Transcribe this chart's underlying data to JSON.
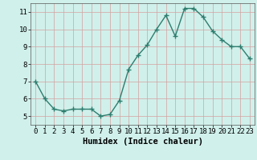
{
  "x": [
    0,
    1,
    2,
    3,
    4,
    5,
    6,
    7,
    8,
    9,
    10,
    11,
    12,
    13,
    14,
    15,
    16,
    17,
    18,
    19,
    20,
    21,
    22,
    23
  ],
  "y": [
    7.0,
    6.0,
    5.4,
    5.3,
    5.4,
    5.4,
    5.4,
    5.0,
    5.1,
    5.9,
    7.7,
    8.5,
    9.1,
    10.0,
    10.8,
    9.6,
    11.2,
    11.2,
    10.7,
    9.9,
    9.4,
    9.0,
    9.0,
    8.3
  ],
  "line_color": "#2e7d6e",
  "marker": "+",
  "marker_size": 4,
  "bg_color": "#d0f0eb",
  "grid_color": "#b8d8d4",
  "xlabel": "Humidex (Indice chaleur)",
  "xlim": [
    -0.5,
    23.5
  ],
  "ylim": [
    4.5,
    11.5
  ],
  "yticks": [
    5,
    6,
    7,
    8,
    9,
    10,
    11
  ],
  "xticks": [
    0,
    1,
    2,
    3,
    4,
    5,
    6,
    7,
    8,
    9,
    10,
    11,
    12,
    13,
    14,
    15,
    16,
    17,
    18,
    19,
    20,
    21,
    22,
    23
  ],
  "tick_label_fontsize": 6.5,
  "xlabel_fontsize": 7.5,
  "line_width": 1.0
}
